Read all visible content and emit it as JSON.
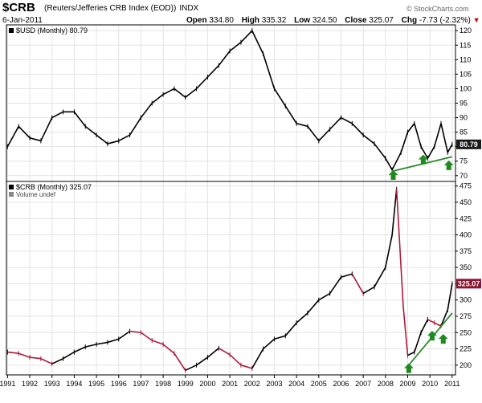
{
  "header": {
    "symbol": "$CRB",
    "name": "(Reuters/Jefferies CRB Index (EOD))",
    "exchange": "INDX",
    "date": "6-Jan-2011",
    "open_label": "Open",
    "open": "334.80",
    "high_label": "High",
    "high": "335.32",
    "low_label": "Low",
    "low": "324.50",
    "close_label": "Close",
    "close": "325.07",
    "chg_label": "Chg",
    "chg": "-7.73 (-2.32%)",
    "site": "© StockCharts.com"
  },
  "colors": {
    "usd_line": "#000000",
    "crb_up": "#000000",
    "crb_down": "#b0193a",
    "trendline": "#2a8a2a",
    "arrow": "#1f8a1f",
    "grid": "#e4e4e4",
    "last_badge": "#8a1530"
  },
  "chart_data": [
    {
      "type": "line",
      "panel": "upper",
      "legend": "$USD (Monthly) 80.79",
      "last_value": "80.79",
      "ylim": [
        68,
        122
      ],
      "yticks": [
        "70",
        "75",
        "80",
        "85",
        "90",
        "95",
        "100",
        "105",
        "110",
        "115",
        "120"
      ],
      "x": [
        1991.0,
        1991.5,
        1992.0,
        1992.5,
        1993.0,
        1993.5,
        1994.0,
        1994.5,
        1995.0,
        1995.5,
        1996.0,
        1996.5,
        1997.0,
        1997.5,
        1998.0,
        1998.5,
        1999.0,
        1999.5,
        2000.0,
        2000.5,
        2001.0,
        2001.5,
        2002.0,
        2002.5,
        2003.0,
        2003.5,
        2004.0,
        2004.5,
        2005.0,
        2005.5,
        2006.0,
        2006.5,
        2007.0,
        2007.5,
        2008.0,
        2008.3,
        2008.7,
        2009.0,
        2009.3,
        2009.6,
        2009.9,
        2010.2,
        2010.5,
        2010.8,
        2011.0
      ],
      "series": [
        {
          "name": "$USD",
          "values": [
            80,
            87,
            83,
            82,
            90,
            92,
            92,
            87,
            84,
            81,
            82,
            84,
            90,
            95,
            98,
            100,
            97,
            100,
            104,
            108,
            113,
            116,
            120,
            112,
            100,
            94,
            88,
            87,
            82,
            86,
            90,
            88,
            84,
            81,
            76,
            72,
            78,
            85,
            88,
            80,
            76,
            80,
            88,
            78,
            80.79
          ]
        }
      ],
      "trendline_points": [
        [
          2008.3,
          71.5
        ],
        [
          2011.0,
          76.5
        ]
      ],
      "arrows_at_x": [
        2008.35,
        2009.7,
        2010.85
      ]
    },
    {
      "type": "line",
      "panel": "lower",
      "legend": "$CRB (Monthly) 325.07",
      "sublegend": "Volume undef",
      "last_value": "325.07",
      "ylim": [
        185,
        482
      ],
      "yticks": [
        "200",
        "225",
        "250",
        "275",
        "300",
        "325",
        "350",
        "375",
        "400",
        "425",
        "450",
        "475"
      ],
      "x": [
        1991.0,
        1991.5,
        1992.0,
        1992.5,
        1993.0,
        1993.5,
        1994.0,
        1994.5,
        1995.0,
        1995.5,
        1996.0,
        1996.5,
        1997.0,
        1997.5,
        1998.0,
        1998.5,
        1999.0,
        1999.5,
        2000.0,
        2000.5,
        2001.0,
        2001.5,
        2002.0,
        2002.5,
        2003.0,
        2003.5,
        2004.0,
        2004.5,
        2005.0,
        2005.5,
        2006.0,
        2006.5,
        2007.0,
        2007.5,
        2008.0,
        2008.3,
        2008.5,
        2008.8,
        2009.0,
        2009.3,
        2009.6,
        2009.9,
        2010.2,
        2010.5,
        2010.8,
        2011.0
      ],
      "series": [
        {
          "name": "$CRB",
          "values": [
            220,
            218,
            212,
            210,
            202,
            210,
            220,
            228,
            232,
            235,
            240,
            252,
            250,
            238,
            232,
            218,
            192,
            200,
            212,
            226,
            216,
            200,
            195,
            225,
            240,
            245,
            265,
            280,
            300,
            310,
            335,
            340,
            310,
            320,
            350,
            400,
            470,
            290,
            215,
            220,
            250,
            270,
            265,
            260,
            285,
            325.07
          ]
        }
      ],
      "trendline_points": [
        [
          2009.0,
          198
        ],
        [
          2011.0,
          280
        ]
      ],
      "arrows_at_x": [
        2009.05,
        2010.1,
        2010.6
      ]
    }
  ],
  "xaxis": {
    "xlim": [
      1990.95,
      2011.15
    ],
    "labels": [
      "1991",
      "1992",
      "1993",
      "1994",
      "1995",
      "1996",
      "1997",
      "1998",
      "1999",
      "2000",
      "2001",
      "2002",
      "2003",
      "2004",
      "2005",
      "2006",
      "2007",
      "2008",
      "2009",
      "2010",
      "2011"
    ]
  }
}
